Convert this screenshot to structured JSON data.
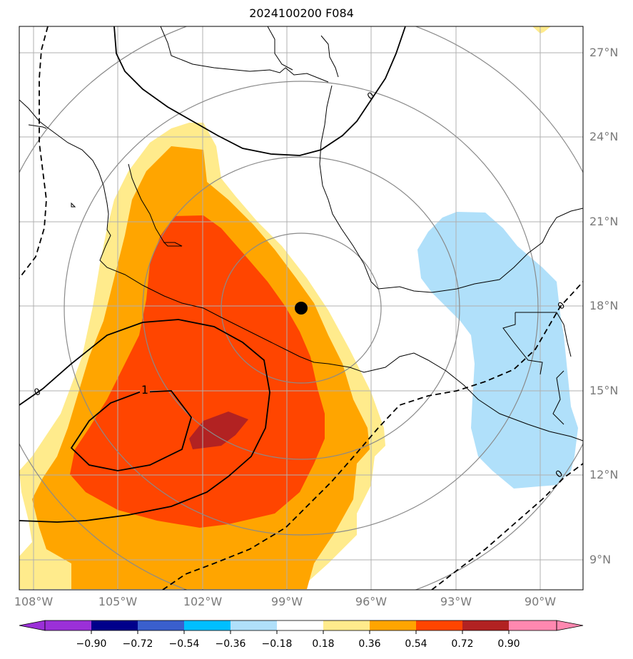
{
  "title": "2024100200 F084",
  "map": {
    "extent": {
      "lon_min": -108.5,
      "lon_max": -88.5,
      "lat_min": 8.0,
      "lat_max": 28.0
    },
    "lat_labels": [
      "27°N",
      "24°N",
      "21°N",
      "18°N",
      "15°N",
      "12°N",
      "9°N"
    ],
    "lon_labels": [
      "108°W",
      "105°W",
      "102°W",
      "99°W",
      "96°W",
      "93°W",
      "90°W"
    ],
    "storm_center": {
      "lon": -98.5,
      "lat": 18.0
    },
    "contour_labels": [
      "1",
      "0",
      "0",
      "0",
      "0"
    ]
  },
  "colorbar": {
    "ticks": [
      "−0.90",
      "−0.72",
      "−0.54",
      "−0.36",
      "−0.18",
      "0.18",
      "0.36",
      "0.54",
      "0.72",
      "0.90"
    ],
    "colors": [
      "#9b30d8",
      "#00008b",
      "#3a5fcd",
      "#00bfff",
      "#b0e0fa",
      "#ffffff",
      "#ffeb8c",
      "#ffa500",
      "#ff4500",
      "#b22222",
      "#ff88b0"
    ]
  }
}
